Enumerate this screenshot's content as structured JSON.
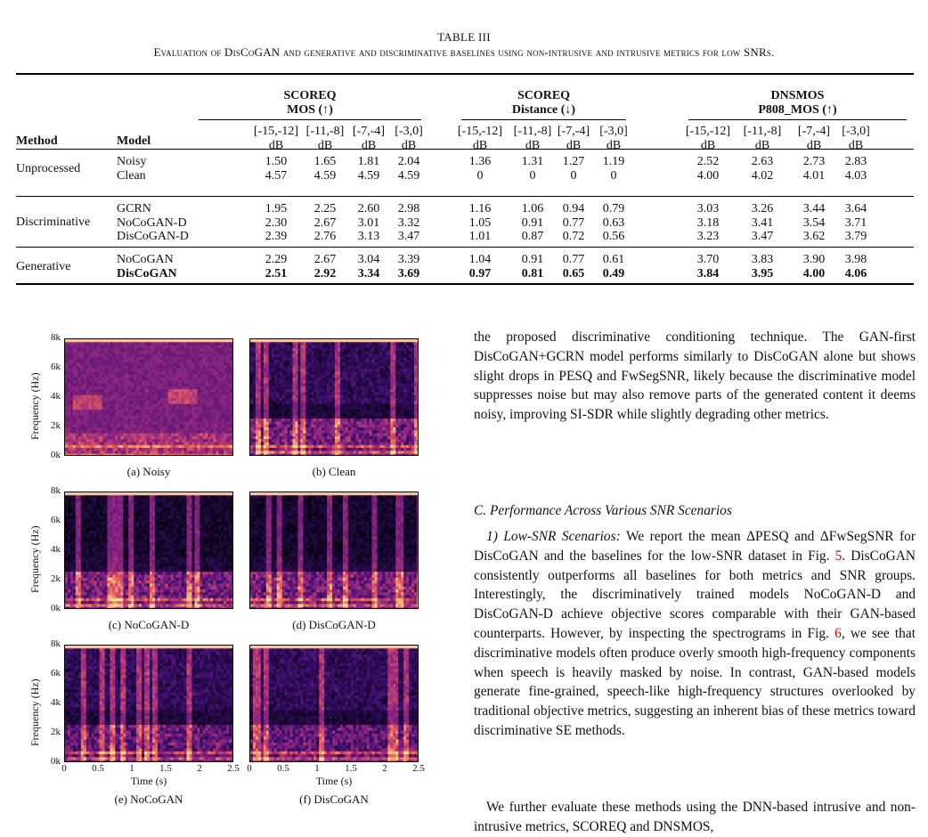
{
  "caption": {
    "label": "TABLE III",
    "text": "Evaluation of DisCoGAN and generative and discriminative baselines using non-intrusive and intrusive metrics for low SNRs."
  },
  "table": {
    "col_method": "Method",
    "col_model": "Model",
    "groups": [
      {
        "line1": "SCOREQ",
        "line2": "MOS (↑)"
      },
      {
        "line1": "SCOREQ",
        "line2": "Distance (↓)"
      },
      {
        "line1": "DNSMOS",
        "line2": "P808_MOS (↑)"
      }
    ],
    "snr_ranges": [
      "[-15,-12]",
      "[-11,-8]",
      "[-7,-4]",
      "[-3,0]"
    ],
    "unit": "dB",
    "sections": [
      {
        "method": "Unprocessed",
        "rows": [
          {
            "model": "Noisy",
            "bold": false,
            "values": [
              "1.50",
              "1.65",
              "1.81",
              "2.04",
              "1.36",
              "1.31",
              "1.27",
              "1.19",
              "2.52",
              "2.63",
              "2.73",
              "2.83"
            ]
          },
          {
            "model": "Clean",
            "bold": false,
            "values": [
              "4.57",
              "4.59",
              "4.59",
              "4.59",
              "0",
              "0",
              "0",
              "0",
              "4.00",
              "4.02",
              "4.01",
              "4.03"
            ]
          }
        ]
      },
      {
        "method": "Discriminative",
        "rows": [
          {
            "model": "GCRN",
            "bold": false,
            "values": [
              "1.95",
              "2.25",
              "2.60",
              "2.98",
              "1.16",
              "1.06",
              "0.94",
              "0.79",
              "3.03",
              "3.26",
              "3.44",
              "3.64"
            ]
          },
          {
            "model": "NoCoGAN-D",
            "bold": false,
            "values": [
              "2.30",
              "2.67",
              "3.01",
              "3.32",
              "1.05",
              "0.91",
              "0.77",
              "0.63",
              "3.18",
              "3.41",
              "3.54",
              "3.71"
            ]
          },
          {
            "model": "DisCoGAN-D",
            "bold": false,
            "values": [
              "2.39",
              "2.76",
              "3.13",
              "3.47",
              "1.01",
              "0.87",
              "0.72",
              "0.56",
              "3.23",
              "3.47",
              "3.62",
              "3.79"
            ]
          }
        ]
      },
      {
        "method": "Generative",
        "rows": [
          {
            "model": "NoCoGAN",
            "bold": false,
            "values": [
              "2.29",
              "2.67",
              "3.04",
              "3.39",
              "1.04",
              "0.91",
              "0.77",
              "0.61",
              "3.70",
              "3.83",
              "3.90",
              "3.98"
            ]
          },
          {
            "model": "DisCoGAN",
            "bold": true,
            "values": [
              "2.51",
              "2.92",
              "3.34",
              "3.69",
              "0.97",
              "0.81",
              "0.65",
              "0.49",
              "3.84",
              "3.95",
              "4.00",
              "4.06"
            ]
          }
        ]
      }
    ]
  },
  "figure": {
    "ylabel": "Frequency (Hz)",
    "xlabel": "Time (s)",
    "yticks": [
      "8k",
      "6k",
      "4k",
      "2k",
      "0k"
    ],
    "xticks": [
      "0",
      "0.5",
      "1",
      "1.5",
      "2",
      "2.5"
    ],
    "panels": [
      {
        "caption": "(a) Noisy",
        "kind": "noisy"
      },
      {
        "caption": "(b) Clean",
        "kind": "clean"
      },
      {
        "caption": "(c) NoCoGAN-D",
        "kind": "disc"
      },
      {
        "caption": "(d) DisCoGAN-D",
        "kind": "disc"
      },
      {
        "caption": "(e) NoCoGAN",
        "kind": "gan"
      },
      {
        "caption": "(f) DisCoGAN",
        "kind": "gan"
      }
    ]
  },
  "text": {
    "para1": "the proposed discriminative conditioning technique. The GAN-first DisCoGAN+GCRN model performs similarly to DisCoGAN alone but shows slight drops in PESQ and FwSegSNR, likely because the discriminative model suppresses noise but may also remove parts of the generated content it deems noisy, improving SI-SDR while slightly degrading other metrics.",
    "section": "C. Performance Across Various SNR Scenarios",
    "para2_head": "1) Low-SNR Scenarios:",
    "para2_a": " We report the mean ΔPESQ and ΔFwSegSNR for DisCoGAN and the baselines for the low-SNR dataset in Fig. ",
    "fig5": "5",
    "para2_b": ". DisCoGAN consistently outperforms all baselines for both metrics and SNR groups. Interestingly, the discriminatively trained models NoCoGAN-D and DisCoGAN-D achieve objective scores comparable with their GAN-based counterparts. However, by inspecting the spectrograms in Fig. ",
    "fig6": "6",
    "para2_c": ", we see that discriminative models often produce overly smooth high-frequency components when speech is heavily masked by noise. In contrast, GAN-based models generate fine-grained, speech-like high-frequency structures overlooked by traditional objective metrics, suggesting an inherent bias of these metrics toward discriminative SE methods.",
    "para3": "We further evaluate these methods using the DNN-based intrusive and non-intrusive metrics, SCOREQ and DNSMOS,"
  }
}
